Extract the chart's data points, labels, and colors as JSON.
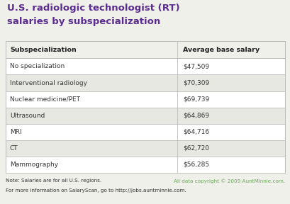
{
  "title_line1": "U.S. radiologic technologist (RT)",
  "title_line2": "salaries by subspecialization",
  "title_color": "#5b2d8e",
  "col1_header": "Subspecialization",
  "col2_header": "Average base salary",
  "rows": [
    [
      "No specialization",
      "$47,509"
    ],
    [
      "Interventional radiology",
      "$70,309"
    ],
    [
      "Nuclear medicine/PET",
      "$69,739"
    ],
    [
      "Ultrasound",
      "$64,869"
    ],
    [
      "MRI",
      "$64,716"
    ],
    [
      "CT",
      "$62,720"
    ],
    [
      "Mammography",
      "$56,285"
    ]
  ],
  "note_line1": "Note: Salaries are for all U.S. regions.",
  "note_line2": "For more information on SalaryScan, go to http://jobs.auntminnie.com.",
  "copyright_text": "All data copyright © 2009 AuntMinnie.com.",
  "copyright_color": "#6aaa5a",
  "bg_color": "#f0f0ea",
  "row_even_color": "#ffffff",
  "row_odd_color": "#e8e8e2",
  "header_font_color": "#222222",
  "cell_font_color": "#333333",
  "border_color": "#bbbbbb",
  "title_fontsize": 9.5,
  "header_fontsize": 6.8,
  "cell_fontsize": 6.5,
  "note_fontsize": 5.2,
  "fig_width": 4.1,
  "fig_height": 2.88,
  "dpi": 100
}
